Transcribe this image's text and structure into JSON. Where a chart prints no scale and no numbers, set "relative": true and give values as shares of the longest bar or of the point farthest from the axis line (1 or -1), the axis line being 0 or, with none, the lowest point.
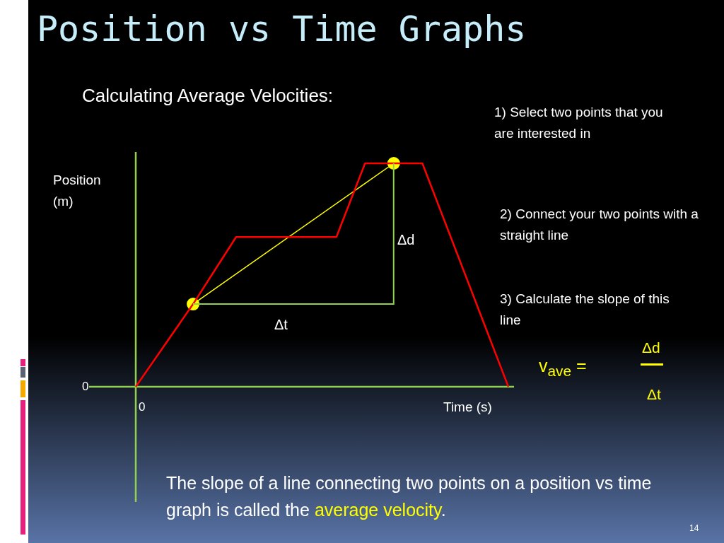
{
  "chart_data": {
    "type": "line",
    "title": "Position vs Time Graphs",
    "subtitle": "Calculating Average Velocities:",
    "xlabel": "Time (s)",
    "ylabel": "Position (m)",
    "relative": true,
    "legend": false,
    "categories": [
      null,
      null,
      null,
      null,
      null,
      null,
      null,
      null,
      null,
      null,
      null,
      null,
      null,
      null,
      null,
      null,
      null,
      null,
      null,
      null,
      null,
      null,
      null,
      null,
      null,
      null,
      null
    ],
    "series": [
      {
        "color": "#ff0000",
        "marker": "none",
        "values": [
          0,
          null,
          null,
          null,
          0.37,
          null,
          null,
          0.67,
          null,
          null,
          null,
          null,
          null,
          null,
          0.67,
          null,
          1,
          null,
          null,
          null,
          1,
          null,
          null,
          null,
          null,
          null,
          0
        ]
      },
      {
        "color": "#ffff00",
        "marker": "circle",
        "values": [
          null,
          null,
          null,
          null,
          0.37,
          null,
          null,
          null,
          null,
          null,
          null,
          null,
          null,
          null,
          null,
          null,
          null,
          null,
          1,
          null,
          null,
          null,
          null,
          null,
          null,
          null,
          null
        ]
      }
    ],
    "annotations": [
      "1) Select two points that you are interested in",
      "2) Connect your two points with a straight line",
      "3) Calculate the slope of this line",
      "v$_{ave}$ =",
      "Δd",
      "Δt",
      "The slope of a line connecting  two points on a position vs time graph is called the",
      "average velocity",
      ".",
      "14",
      "0",
      "0",
      "Δt",
      "Δd"
    ]
  }
}
